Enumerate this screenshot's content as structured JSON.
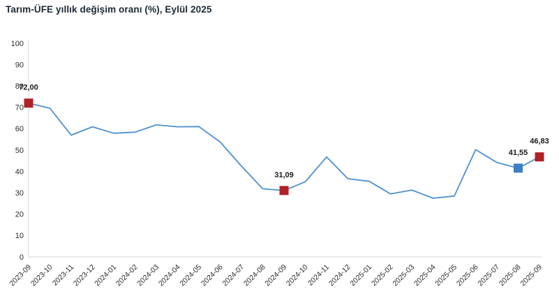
{
  "title": "Tarım-ÜFE yıllık değişim oranı (%), Eylül 2025",
  "chart_data": {
    "type": "line",
    "title": "Tarım-ÜFE yıllık değişim oranı (%), Eylül 2025",
    "categories": [
      "2023-09",
      "2023-10",
      "2023-11",
      "2023-12",
      "2024-01",
      "2024-02",
      "2024-03",
      "2024-04",
      "2024-05",
      "2024-06",
      "2024-07",
      "2024-08",
      "2024-09",
      "2024-10",
      "2024-11",
      "2024-12",
      "2025-01",
      "2025-02",
      "2025-03",
      "2025-04",
      "2025-05",
      "2025-06",
      "2025-07",
      "2025-08",
      "2025-09"
    ],
    "values": [
      72.0,
      69.6,
      57.0,
      60.9,
      57.9,
      58.4,
      61.8,
      60.9,
      61.0,
      53.8,
      42.5,
      31.9,
      31.09,
      35.2,
      46.8,
      36.6,
      35.4,
      29.5,
      31.3,
      27.5,
      28.5,
      50.2,
      44.2,
      41.55,
      46.83
    ],
    "xlabel": "",
    "ylabel": "",
    "ylim": [
      0,
      100
    ],
    "ytick_step": 10,
    "grid": false,
    "legend_position": "none",
    "line_color": "#4d90ce",
    "axis_color": "#d6d6d6",
    "tick_label_color": "#2b2b2b",
    "annotation_label_color": "#1a1a1a",
    "annotations": [
      {
        "category": "2023-09",
        "label": "72,00",
        "value": 72.0,
        "marker_color": "#b02127"
      },
      {
        "category": "2024-09",
        "label": "31,09",
        "value": 31.09,
        "marker_color": "#b02127"
      },
      {
        "category": "2025-08",
        "label": "41,55",
        "value": 41.55,
        "marker_color": "#3d80c2"
      },
      {
        "category": "2025-09",
        "label": "46,83",
        "value": 46.83,
        "marker_color": "#b02127"
      }
    ]
  }
}
